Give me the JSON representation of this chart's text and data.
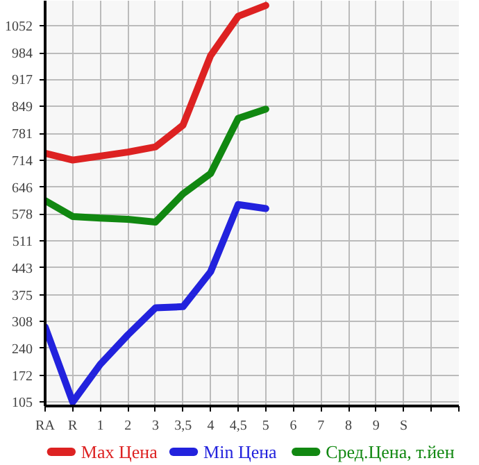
{
  "chart_data": {
    "type": "line",
    "categories": [
      "RA",
      "R",
      "1",
      "2",
      "3",
      "3,5",
      "4",
      "4,5",
      "5",
      "6",
      "7",
      "8",
      "9",
      "S",
      null
    ],
    "ylim": [
      95,
      1115
    ],
    "yticks": [
      105,
      172,
      240,
      308,
      375,
      443,
      511,
      578,
      646,
      714,
      781,
      849,
      917,
      984,
      1052
    ],
    "grid": true,
    "legend": "bottom",
    "marker": "none",
    "line_style": "solid",
    "series": [
      {
        "name": "Max Цена",
        "color": "#dd2222",
        "values": [
          731,
          714,
          724,
          734,
          747,
          802,
          977,
          1076,
          1103,
          null,
          null,
          null,
          null,
          null,
          null
        ]
      },
      {
        "name": "Min Цена",
        "color": "#2222dd",
        "values": [
          294,
          105,
          200,
          274,
          342,
          345,
          433,
          602,
          592,
          null,
          null,
          null,
          null,
          null,
          null
        ]
      },
      {
        "name": "Сред.Цена, т.йен",
        "color": "#118811",
        "values": [
          612,
          572,
          568,
          565,
          558,
          629,
          680,
          819,
          842,
          null,
          null,
          null,
          null,
          null,
          null
        ]
      }
    ]
  }
}
